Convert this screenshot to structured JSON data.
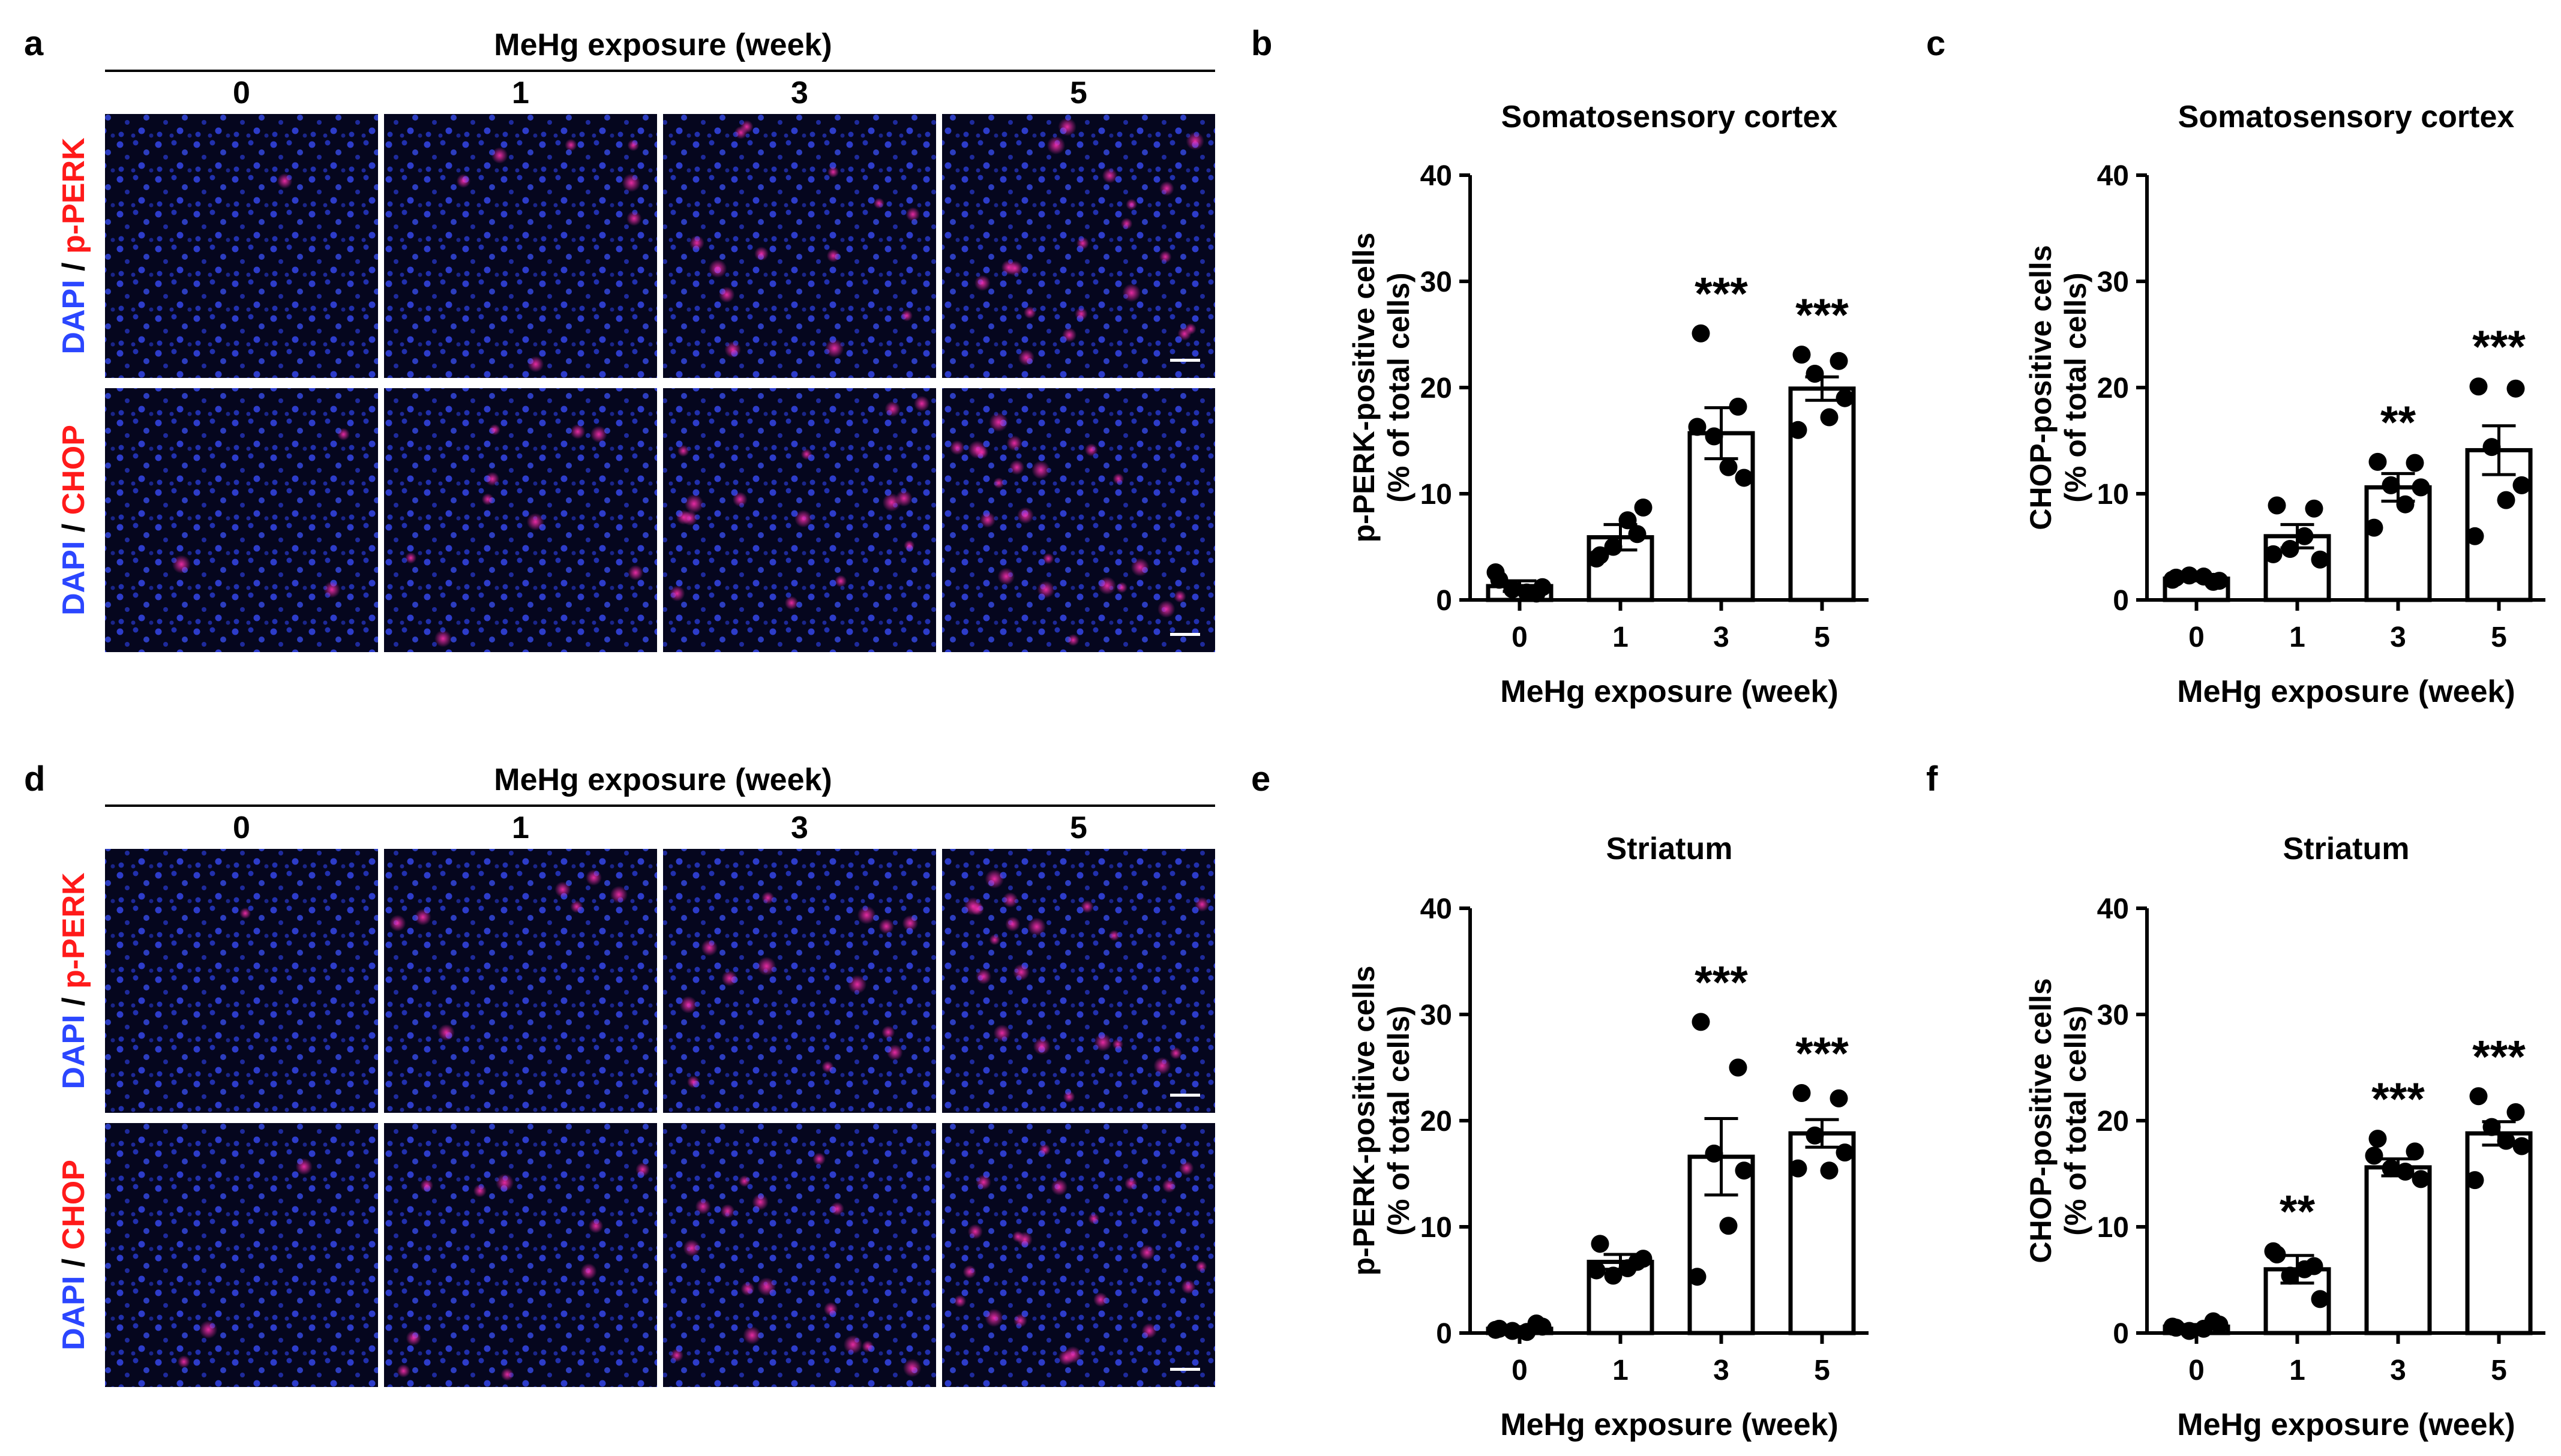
{
  "figure": {
    "panel_letters": [
      "a",
      "b",
      "c",
      "d",
      "e",
      "f"
    ],
    "image_panels": {
      "header": "MeHg exposure (week)",
      "weeks": [
        "0",
        "1",
        "3",
        "5"
      ],
      "rows": [
        {
          "dapi": "DAPI",
          "sep": " / ",
          "marker": "p-PERK"
        },
        {
          "dapi": "DAPI",
          "sep": " / ",
          "marker": "CHOP"
        }
      ]
    },
    "colors": {
      "dapi_blue": "#2b46ff",
      "marker_red": "#ff1a1a",
      "bar_fill": "#ffffff",
      "point": "#000000"
    }
  },
  "chart_data": [
    {
      "panel": "b",
      "type": "bar",
      "title": "Somatosensory cortex",
      "ylabel_line1": "p-PERK-positive cells",
      "ylabel_line2": "(% of total cells)",
      "xlabel": "MeHg exposure (week)",
      "categories": [
        "0",
        "1",
        "3",
        "5"
      ],
      "ylim": [
        0,
        40
      ],
      "yticks": [
        "0",
        "10",
        "20",
        "30",
        "40"
      ],
      "means": [
        1.3,
        5.9,
        15.7,
        19.9
      ],
      "sem": [
        0.5,
        1.2,
        2.4,
        1.1
      ],
      "significance": [
        "",
        "",
        "***",
        "***"
      ],
      "points": [
        [
          1.9,
          0.6,
          1.0,
          1.2,
          0.7,
          2.6
        ],
        [
          4.2,
          6.2,
          5.0,
          8.7,
          7.5,
          3.9
        ],
        [
          25.1,
          18.2,
          15.4,
          11.5,
          12.5,
          16.3
        ],
        [
          23.1,
          22.5,
          21.3,
          19.0,
          17.2,
          16.0
        ]
      ]
    },
    {
      "panel": "c",
      "type": "bar",
      "title": "Somatosensory cortex",
      "ylabel_line1": "CHOP-positive cells",
      "ylabel_line2": "(% of total cells)",
      "xlabel": "MeHg exposure (week)",
      "categories": [
        "0",
        "1",
        "3",
        "5"
      ],
      "ylim": [
        0,
        40
      ],
      "yticks": [
        "0",
        "10",
        "20",
        "30",
        "40"
      ],
      "means": [
        2.0,
        6.0,
        10.6,
        14.1
      ],
      "sem": [
        0.2,
        1.1,
        1.3,
        2.3
      ],
      "significance": [
        "",
        "",
        "**",
        "***"
      ],
      "points": [
        [
          2.1,
          1.7,
          2.3,
          1.8,
          2.2,
          1.9
        ],
        [
          8.9,
          8.6,
          4.8,
          3.8,
          6.0,
          4.3
        ],
        [
          13.0,
          12.9,
          10.8,
          10.6,
          9.0,
          6.8
        ],
        [
          20.1,
          19.9,
          14.4,
          10.8,
          9.4,
          6.0
        ]
      ]
    },
    {
      "panel": "e",
      "type": "bar",
      "title": "Striatum",
      "ylabel_line1": "p-PERK-positive cells",
      "ylabel_line2": "(% of total cells)",
      "xlabel": "MeHg exposure (week)",
      "categories": [
        "0",
        "1",
        "3",
        "5"
      ],
      "ylim": [
        0,
        40
      ],
      "yticks": [
        "0",
        "10",
        "20",
        "30",
        "40"
      ],
      "means": [
        0.4,
        6.7,
        16.6,
        18.8
      ],
      "sem": [
        0.2,
        0.7,
        3.6,
        1.3
      ],
      "significance": [
        "",
        "",
        "***",
        "***"
      ],
      "points": [
        [
          0.4,
          0.9,
          0.2,
          0.6,
          0.1,
          0.3
        ],
        [
          8.4,
          6.7,
          5.4,
          7.0,
          6.1,
          5.9
        ],
        [
          29.3,
          25.0,
          16.9,
          15.3,
          10.1,
          5.3
        ],
        [
          22.6,
          22.1,
          18.6,
          17.0,
          15.3,
          15.5
        ]
      ]
    },
    {
      "panel": "f",
      "type": "bar",
      "title": "Striatum",
      "ylabel_line1": "CHOP-positive cells",
      "ylabel_line2": "(% of total cells)",
      "xlabel": "MeHg exposure (week)",
      "categories": [
        "0",
        "1",
        "3",
        "5"
      ],
      "ylim": [
        0,
        40
      ],
      "yticks": [
        "0",
        "10",
        "20",
        "30",
        "40"
      ],
      "means": [
        0.6,
        6.0,
        15.6,
        18.8
      ],
      "sem": [
        0.2,
        1.3,
        0.8,
        1.1
      ],
      "significance": [
        "",
        "**",
        "***",
        "***"
      ],
      "points": [
        [
          0.5,
          1.1,
          0.2,
          0.8,
          0.4,
          0.6
        ],
        [
          7.4,
          6.3,
          5.4,
          3.2,
          6.0,
          7.7
        ],
        [
          18.3,
          17.1,
          15.5,
          14.5,
          15.2,
          16.7
        ],
        [
          22.3,
          20.8,
          19.4,
          17.6,
          18.1,
          14.4
        ]
      ]
    }
  ]
}
